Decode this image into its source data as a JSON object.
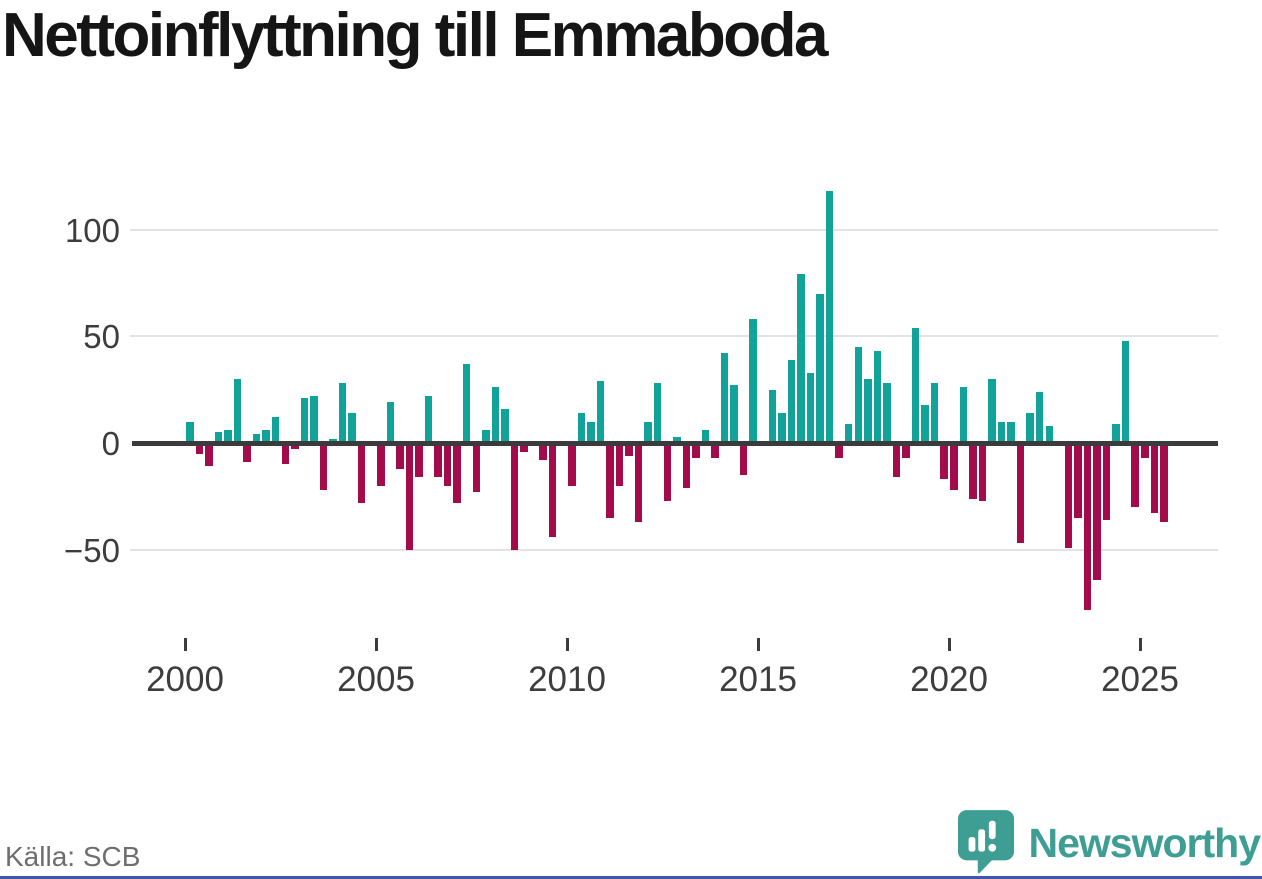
{
  "header": {
    "title": "Nettoinflyttning till Emmaboda"
  },
  "footer": {
    "source": "Källa: SCB",
    "brand": "Newsworthy"
  },
  "colors": {
    "positive": "#11a29a",
    "negative": "#a40b4b",
    "brand_teal": "#3f9e94",
    "zero_line": "#3b3b3b",
    "gridline": "#e3e3e3",
    "accent_bottom_bar": "#3e57a8",
    "tick_text": "#3d3d3d",
    "source_text": "#6e6e6e"
  },
  "chart_data": {
    "type": "bar",
    "title": "Nettoinflyttning till Emmaboda",
    "source": "Källa: SCB",
    "frequency": "quarterly",
    "start": "2000-Q1",
    "end": "2025-Q3",
    "grid": "horizontal",
    "legend": "none",
    "ylim": [
      -85,
      125
    ],
    "yticks": [
      {
        "value": 100,
        "label": "100"
      },
      {
        "value": 50,
        "label": "50"
      },
      {
        "value": 0,
        "label": "0"
      },
      {
        "value": -50,
        "label": "−50"
      }
    ],
    "xticks": [
      {
        "year": 2000,
        "label": "2000"
      },
      {
        "year": 2005,
        "label": "2005"
      },
      {
        "year": 2010,
        "label": "2010"
      },
      {
        "year": 2015,
        "label": "2015"
      },
      {
        "year": 2020,
        "label": "2020"
      },
      {
        "year": 2025,
        "label": "2025"
      }
    ],
    "values": [
      10,
      -5,
      -11,
      5,
      6,
      30,
      -9,
      4,
      6,
      12,
      -10,
      -3,
      21,
      22,
      -22,
      2,
      28,
      14,
      -28,
      0,
      -20,
      19,
      -12,
      -50,
      -16,
      22,
      -16,
      -20,
      -28,
      37,
      -23,
      6,
      26,
      16,
      -50,
      -4,
      0,
      -8,
      -44,
      0,
      -20,
      14,
      10,
      29,
      -35,
      -20,
      -6,
      -37,
      10,
      28,
      -27,
      3,
      -21,
      -7,
      6,
      -7,
      42,
      27,
      -15,
      58,
      0,
      25,
      14,
      39,
      79,
      33,
      70,
      118,
      -7,
      9,
      45,
      30,
      43,
      28,
      -16,
      -7,
      54,
      18,
      28,
      -17,
      -22,
      26,
      -26,
      -27,
      30,
      10,
      10,
      -47,
      14,
      24,
      8,
      0,
      -49,
      -35,
      -78,
      -64,
      -36,
      9,
      48,
      -30,
      -7,
      -33,
      -37
    ]
  }
}
